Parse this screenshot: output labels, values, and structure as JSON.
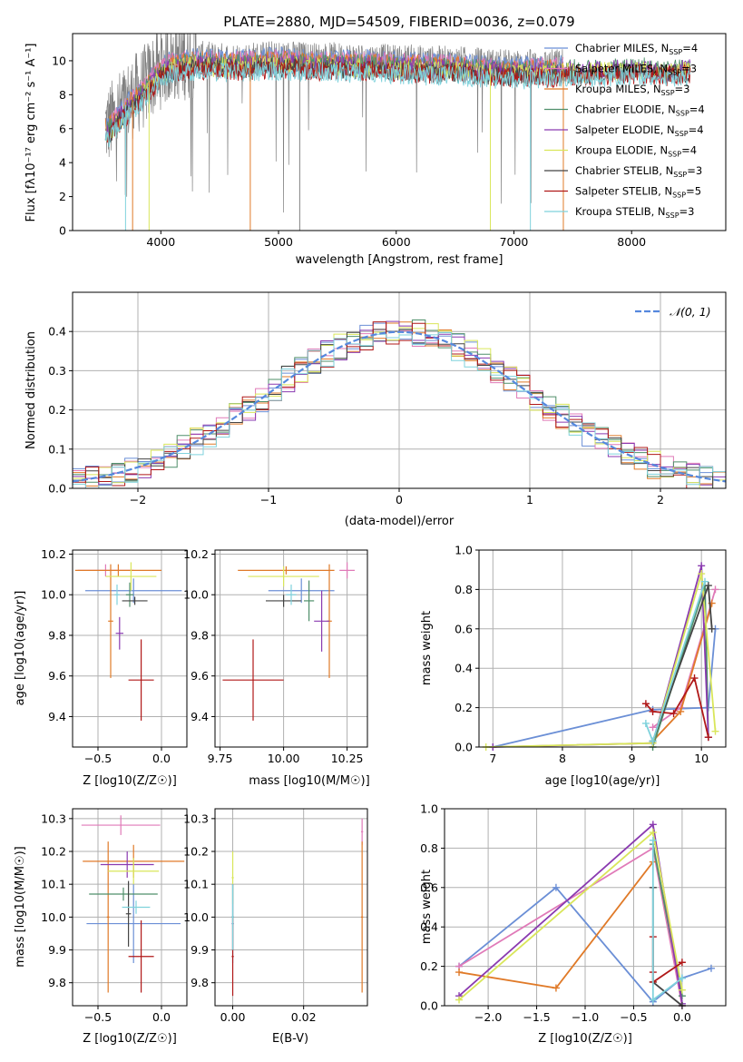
{
  "figure_title": "PLATE=2880, MJD=54509, FIBERID=0036, z=0.079",
  "colors": {
    "chabrier_miles": "#6b8fd6",
    "salpeter_miles": "#e07ab8",
    "kroupa_miles": "#e07a28",
    "chabrier_elodie": "#4f8f6a",
    "salpeter_elodie": "#8a3ab0",
    "kroupa_elodie": "#d9e65a",
    "chabrier_stelib": "#444444",
    "salpeter_stelib": "#b01818",
    "kroupa_stelib": "#7fd2dc",
    "spectrum": "#808080",
    "normal_curve": "#5588dd",
    "grid": "#b0b0b0"
  },
  "chart_data": [
    {
      "id": "spectrum",
      "type": "line",
      "title": "PLATE=2880, MJD=54509, FIBERID=0036, z=0.079",
      "xlabel": "wavelength [Angstrom, rest frame]",
      "ylabel": "Flux [fλ10⁻¹⁷ erg cm⁻² s⁻¹ A⁻¹]",
      "xlim": [
        3250,
        8800
      ],
      "ylim": [
        0,
        11.6
      ],
      "xticks": [
        4000,
        5000,
        6000,
        7000,
        8000
      ],
      "yticks": [
        0,
        2,
        4,
        6,
        8,
        10
      ],
      "grid": false,
      "legend_position": "top-right",
      "legend": [
        "Chabrier MILES, N_SSP=4",
        "Salpeter MILES, N_SSP=3",
        "Kroupa MILES, N_SSP=3",
        "Chabrier ELODIE, N_SSP=4",
        "Salpeter ELODIE, N_SSP=4",
        "Kroupa ELODIE, N_SSP=4",
        "Chabrier STELIB, N_SSP=3",
        "Salpeter STELIB, N_SSP=5",
        "Kroupa STELIB, N_SSP=3"
      ],
      "continuum": {
        "x": [
          3550,
          3650,
          3750,
          3850,
          3950,
          4050,
          4150,
          4300,
          4500,
          4700,
          4900,
          5100,
          5300,
          5500,
          5700,
          5900,
          6100,
          6300,
          6500,
          6700,
          6900,
          7100,
          7300,
          7500,
          7700,
          7900,
          8100,
          8300,
          8500
        ],
        "y": [
          6.2,
          7.0,
          7.8,
          8.4,
          9.3,
          9.9,
          10.1,
          10.2,
          10.1,
          10.1,
          10.2,
          10.2,
          10.1,
          10.1,
          10.1,
          10.0,
          10.0,
          9.9,
          9.9,
          9.8,
          9.7,
          9.7,
          9.7,
          9.8,
          9.8,
          9.9,
          9.9,
          9.8,
          9.9
        ]
      },
      "observed_range": [
        3530,
        7420
      ],
      "model_range": [
        3530,
        8500
      ]
    },
    {
      "id": "residual-histogram",
      "type": "histogram",
      "xlabel": "(data-model)/error",
      "ylabel": "Normed distribution",
      "xlim": [
        -2.5,
        2.5
      ],
      "ylim": [
        0,
        0.5
      ],
      "xticks": [
        -2,
        -1,
        0,
        1,
        2
      ],
      "yticks": [
        0,
        0.1,
        0.2,
        0.3,
        0.4
      ],
      "grid": true,
      "legend_position": "top-right",
      "legend": [
        "𝒩(0, 1)"
      ],
      "bin_width": 0.1
    },
    {
      "id": "z-vs-age",
      "type": "errorbar",
      "xlabel": "Z [log10(Z/Z☉)]",
      "ylabel": "age  [log10(age/yr)]",
      "xlim": [
        -0.7,
        0.2
      ],
      "ylim": [
        9.25,
        10.22
      ],
      "xticks": [
        -0.5,
        0.0
      ],
      "yticks": [
        9.4,
        9.6,
        9.8,
        10.0,
        10.2
      ],
      "grid": true,
      "points": [
        {
          "model": "chabrier_miles",
          "x": -0.22,
          "xerr": 0.38,
          "y": 10.02,
          "yerr": 0.06
        },
        {
          "model": "salpeter_miles",
          "x": -0.44,
          "xerr": 0.22,
          "y": 10.12,
          "yerr": 0.03
        },
        {
          "model": "kroupa_miles",
          "x": -0.34,
          "xerr": 0.34,
          "y": 10.12,
          "yerr": 0.03
        },
        {
          "model": "kroupa_miles",
          "x": -0.4,
          "xerr": 0.02,
          "y": 9.87,
          "yerr": 0.28
        },
        {
          "model": "chabrier_elodie",
          "x": -0.25,
          "xerr": 0.03,
          "y": 10.0,
          "yerr": 0.06
        },
        {
          "model": "salpeter_elodie",
          "x": -0.33,
          "xerr": 0.03,
          "y": 9.81,
          "yerr": 0.08
        },
        {
          "model": "kroupa_elodie",
          "x": -0.24,
          "xerr": 0.2,
          "y": 10.09,
          "yerr": 0.07
        },
        {
          "model": "chabrier_stelib",
          "x": -0.21,
          "xerr": 0.1,
          "y": 9.97,
          "yerr": 0.02
        },
        {
          "model": "salpeter_stelib",
          "x": -0.16,
          "xerr": 0.1,
          "y": 9.58,
          "yerr": 0.2
        },
        {
          "model": "kroupa_stelib",
          "x": -0.35,
          "xerr": 0.02,
          "y": 10.0,
          "yerr": 0.05
        }
      ]
    },
    {
      "id": "mass-vs-age",
      "type": "errorbar",
      "xlabel": "mass [log10(M/M☉)]",
      "ylabel": "",
      "xlim": [
        9.73,
        10.33
      ],
      "ylim": [
        9.25,
        10.22
      ],
      "xticks": [
        9.75,
        10.0,
        10.25
      ],
      "yticks": [
        9.4,
        9.6,
        9.8,
        10.0,
        10.2
      ],
      "grid": true,
      "points": [
        {
          "model": "chabrier_miles",
          "x": 10.07,
          "xerr": 0.13,
          "y": 10.02,
          "yerr": 0.06
        },
        {
          "model": "salpeter_miles",
          "x": 10.25,
          "xerr": 0.03,
          "y": 10.12,
          "yerr": 0.04
        },
        {
          "model": "kroupa_miles",
          "x": 10.01,
          "xerr": 0.19,
          "y": 10.12,
          "yerr": 0.02
        },
        {
          "model": "kroupa_miles",
          "x": 10.18,
          "xerr": 0.01,
          "y": 9.87,
          "yerr": 0.28
        },
        {
          "model": "chabrier_elodie",
          "x": 10.1,
          "xerr": 0.02,
          "y": 9.97,
          "yerr": 0.1
        },
        {
          "model": "salpeter_elodie",
          "x": 10.15,
          "xerr": 0.03,
          "y": 9.87,
          "yerr": 0.15
        },
        {
          "model": "kroupa_elodie",
          "x": 10.0,
          "xerr": 0.14,
          "y": 10.09,
          "yerr": 0.05
        },
        {
          "model": "chabrier_stelib",
          "x": 10.0,
          "xerr": 0.07,
          "y": 9.97,
          "yerr": 0.03
        },
        {
          "model": "salpeter_stelib",
          "x": 9.88,
          "xerr": 0.12,
          "y": 9.58,
          "yerr": 0.2
        },
        {
          "model": "kroupa_stelib",
          "x": 10.03,
          "xerr": 0.02,
          "y": 10.0,
          "yerr": 0.05
        }
      ]
    },
    {
      "id": "age-vs-mass-weight",
      "type": "line",
      "xlabel": "age  [log10(age/yr)]",
      "ylabel": "mass weight",
      "xlim": [
        6.8,
        10.35
      ],
      "ylim": [
        0,
        1
      ],
      "xticks": [
        7,
        8,
        9,
        10
      ],
      "yticks": [
        0.0,
        0.2,
        0.4,
        0.6,
        0.8,
        1.0
      ],
      "grid": true,
      "series": [
        {
          "model": "chabrier_miles",
          "x": [
            7.0,
            9.3,
            10.1,
            10.2
          ],
          "y": [
            0.0,
            0.19,
            0.2,
            0.6
          ]
        },
        {
          "model": "salpeter_miles",
          "x": [
            9.3,
            9.7,
            10.2
          ],
          "y": [
            0.1,
            0.2,
            0.8
          ]
        },
        {
          "model": "kroupa_miles",
          "x": [
            9.3,
            9.7,
            10.15
          ],
          "y": [
            0.03,
            0.18,
            0.73
          ]
        },
        {
          "model": "chabrier_elodie",
          "x": [
            9.3,
            10.05,
            10.1
          ],
          "y": [
            0.0,
            0.82,
            0.05
          ]
        },
        {
          "model": "salpeter_elodie",
          "x": [
            7.0,
            9.3,
            10.0,
            10.1
          ],
          "y": [
            0.0,
            0.02,
            0.92,
            0.05
          ]
        },
        {
          "model": "kroupa_elodie",
          "x": [
            6.9,
            9.3,
            10.0,
            10.2
          ],
          "y": [
            0.0,
            0.02,
            0.88,
            0.08
          ]
        },
        {
          "model": "chabrier_stelib",
          "x": [
            9.3,
            10.1,
            10.15
          ],
          "y": [
            0.03,
            0.82,
            0.6
          ]
        },
        {
          "model": "salpeter_stelib",
          "x": [
            9.2,
            9.3,
            9.6,
            9.9,
            10.1
          ],
          "y": [
            0.22,
            0.18,
            0.17,
            0.35,
            0.05
          ]
        },
        {
          "model": "kroupa_stelib",
          "x": [
            9.2,
            9.3,
            10.05
          ],
          "y": [
            0.12,
            0.03,
            0.84
          ]
        }
      ]
    },
    {
      "id": "z-vs-mass",
      "type": "errorbar",
      "xlabel": "Z [log10(Z/Z☉)]",
      "ylabel": "mass [log10(M/M☉)]",
      "xlim": [
        -0.7,
        0.2
      ],
      "ylim": [
        9.73,
        10.33
      ],
      "xticks": [
        -0.5,
        0.0
      ],
      "yticks": [
        9.8,
        9.9,
        10.0,
        10.1,
        10.2,
        10.3
      ],
      "grid": true,
      "points": [
        {
          "model": "chabrier_miles",
          "x": -0.22,
          "xerr": 0.37,
          "y": 9.98,
          "yerr": 0.12
        },
        {
          "model": "salpeter_miles",
          "x": -0.32,
          "xerr": 0.31,
          "y": 10.28,
          "yerr": 0.03
        },
        {
          "model": "kroupa_miles",
          "x": -0.22,
          "xerr": 0.4,
          "y": 10.17,
          "yerr": 0.05
        },
        {
          "model": "kroupa_miles",
          "x": -0.42,
          "xerr": 0.01,
          "y": 10.0,
          "yerr": 0.23
        },
        {
          "model": "chabrier_elodie",
          "x": -0.3,
          "xerr": 0.27,
          "y": 10.07,
          "yerr": 0.02
        },
        {
          "model": "salpeter_elodie",
          "x": -0.27,
          "xerr": 0.21,
          "y": 10.16,
          "yerr": 0.04
        },
        {
          "model": "kroupa_elodie",
          "x": -0.22,
          "xerr": 0.2,
          "y": 10.14,
          "yerr": 0.04
        },
        {
          "model": "chabrier_stelib",
          "x": -0.26,
          "xerr": 0.02,
          "y": 10.01,
          "yerr": 0.1
        },
        {
          "model": "salpeter_stelib",
          "x": -0.16,
          "xerr": 0.1,
          "y": 9.88,
          "yerr": 0.11
        },
        {
          "model": "kroupa_stelib",
          "x": -0.2,
          "xerr": 0.11,
          "y": 10.03,
          "yerr": 0.02
        }
      ]
    },
    {
      "id": "ebv-vs-mass",
      "type": "errorbar",
      "xlabel": "E(B-V)",
      "ylabel": "",
      "xlim": [
        -0.005,
        0.038
      ],
      "ylim": [
        9.73,
        10.33
      ],
      "xticks": [
        0.0,
        0.02
      ],
      "yticks": [
        9.8,
        9.9,
        10.0,
        10.1,
        10.2,
        10.3
      ],
      "grid": true,
      "points": [
        {
          "model": "chabrier_miles",
          "x": 0.0,
          "xerr": 0.0003,
          "y": 9.98,
          "yerr": 0.12
        },
        {
          "model": "salpeter_miles",
          "x": 0.0365,
          "xerr": 0.0003,
          "y": 10.26,
          "yerr": 0.04
        },
        {
          "model": "kroupa_miles",
          "x": 0.0365,
          "xerr": 0.0003,
          "y": 10.0,
          "yerr": 0.23
        },
        {
          "model": "kroupa_elodie",
          "x": 0.0,
          "xerr": 0.0003,
          "y": 10.12,
          "yerr": 0.08
        },
        {
          "model": "chabrier_stelib",
          "x": 0.0,
          "xerr": 0.0003,
          "y": 10.0,
          "yerr": 0.1
        },
        {
          "model": "salpeter_stelib",
          "x": 0.0,
          "xerr": 0.0003,
          "y": 9.88,
          "yerr": 0.12
        },
        {
          "model": "kroupa_stelib",
          "x": 0.0,
          "xerr": 0.0003,
          "y": 10.0,
          "yerr": 0.1
        }
      ]
    },
    {
      "id": "z-vs-mass-weight",
      "type": "line",
      "xlabel": "Z [log10(Z/Z☉)]",
      "ylabel": "mass weight",
      "xlim": [
        -2.45,
        0.45
      ],
      "ylim": [
        0,
        1
      ],
      "xticks": [
        -2.0,
        -1.5,
        -1.0,
        -0.5,
        0.0
      ],
      "yticks": [
        0.0,
        0.2,
        0.4,
        0.6,
        0.8,
        1.0
      ],
      "grid": true,
      "series": [
        {
          "model": "chabrier_miles",
          "x": [
            -2.3,
            -1.3,
            -0.3,
            0.0,
            0.3
          ],
          "y": [
            0.2,
            0.6,
            0.02,
            0.14,
            0.19
          ]
        },
        {
          "model": "salpeter_miles",
          "x": [
            -2.3,
            -0.3,
            0.0
          ],
          "y": [
            0.2,
            0.8,
            0.0
          ]
        },
        {
          "model": "kroupa_miles",
          "x": [
            -2.3,
            -1.3,
            -0.3
          ],
          "y": [
            0.17,
            0.09,
            0.73
          ]
        },
        {
          "model": "chabrier_elodie",
          "x": [
            -0.3,
            0.0
          ],
          "y": [
            0.82,
            0.05
          ]
        },
        {
          "model": "salpeter_elodie",
          "x": [
            -2.3,
            -0.3,
            0.0
          ],
          "y": [
            0.05,
            0.92,
            0.01
          ]
        },
        {
          "model": "kroupa_elodie",
          "x": [
            -2.3,
            -0.3,
            0.0
          ],
          "y": [
            0.03,
            0.88,
            0.08
          ]
        },
        {
          "model": "chabrier_stelib",
          "x": [
            -0.3,
            -0.3,
            0.0
          ],
          "y": [
            0.6,
            0.12,
            0.0
          ]
        },
        {
          "model": "salpeter_stelib",
          "x": [
            -0.3,
            -0.3,
            -0.3,
            0.0
          ],
          "y": [
            0.35,
            0.17,
            0.12,
            0.22
          ]
        },
        {
          "model": "kroupa_stelib",
          "x": [
            -0.3,
            -0.3,
            0.0
          ],
          "y": [
            0.84,
            0.03,
            0.14
          ]
        }
      ]
    }
  ]
}
